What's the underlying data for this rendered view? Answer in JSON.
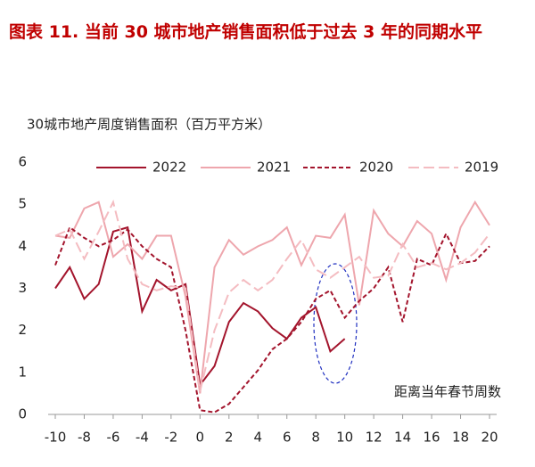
{
  "chart_data": {
    "type": "line",
    "title": "图表 11. 当前 30 城市地产销售面积低于过去 3 年的同期水平",
    "subtitle": "30城市地产周度销售面积（百万平方米）",
    "x_label": "距离当年春节周数",
    "x": [
      -10,
      -9,
      -8,
      -7,
      -6,
      -5,
      -4,
      -3,
      -2,
      -1,
      0,
      1,
      2,
      3,
      4,
      5,
      6,
      7,
      8,
      9,
      10,
      11,
      12,
      13,
      14,
      15,
      16,
      17,
      18,
      19,
      20
    ],
    "xlim": [
      -10,
      20
    ],
    "xticks": [
      -10,
      -8,
      -6,
      -4,
      -2,
      0,
      2,
      4,
      6,
      8,
      10,
      12,
      14,
      16,
      18,
      20
    ],
    "ylim": [
      0,
      6
    ],
    "yticks": [
      0,
      1,
      2,
      3,
      4,
      5,
      6
    ],
    "grid": false,
    "legend": "top",
    "series": [
      {
        "name": "2022",
        "color": "#a3142c",
        "dash": "solid",
        "values": [
          3.0,
          3.5,
          2.75,
          3.1,
          4.35,
          4.45,
          2.45,
          3.2,
          2.95,
          3.1,
          0.7,
          1.15,
          2.2,
          2.65,
          2.45,
          2.05,
          1.8,
          2.3,
          2.55,
          1.5,
          1.8,
          null,
          null,
          null,
          null,
          null,
          null,
          null,
          null,
          null,
          null
        ]
      },
      {
        "name": "2021",
        "color": "#eea6ad",
        "dash": "solid",
        "values": [
          4.25,
          4.2,
          4.9,
          5.05,
          3.75,
          4.05,
          3.7,
          4.25,
          4.25,
          2.8,
          0.5,
          3.5,
          4.15,
          3.8,
          4.0,
          4.15,
          4.45,
          3.55,
          4.25,
          4.2,
          4.75,
          2.6,
          4.85,
          4.3,
          4.0,
          4.6,
          4.3,
          3.2,
          4.45,
          5.05,
          4.5
        ]
      },
      {
        "name": "2020",
        "color": "#a3142c",
        "dash": "dashed",
        "values": [
          3.55,
          4.45,
          4.2,
          4.0,
          4.15,
          4.4,
          4.0,
          3.7,
          3.5,
          2.0,
          0.1,
          0.05,
          0.25,
          0.65,
          1.05,
          1.55,
          1.8,
          2.2,
          2.75,
          2.95,
          2.3,
          2.7,
          3.0,
          3.5,
          2.2,
          3.7,
          3.55,
          4.3,
          3.6,
          3.65,
          4.0
        ]
      },
      {
        "name": "2019",
        "color": "#f4bcc1",
        "dash": "longdash",
        "values": [
          4.25,
          4.4,
          3.7,
          4.35,
          5.05,
          3.7,
          3.1,
          2.95,
          3.05,
          3.0,
          0.55,
          2.0,
          2.9,
          3.2,
          2.95,
          3.2,
          3.7,
          4.15,
          3.45,
          3.25,
          3.5,
          3.75,
          3.25,
          3.3,
          4.05,
          3.5,
          3.6,
          3.45,
          3.6,
          3.85,
          4.3
        ]
      }
    ]
  }
}
